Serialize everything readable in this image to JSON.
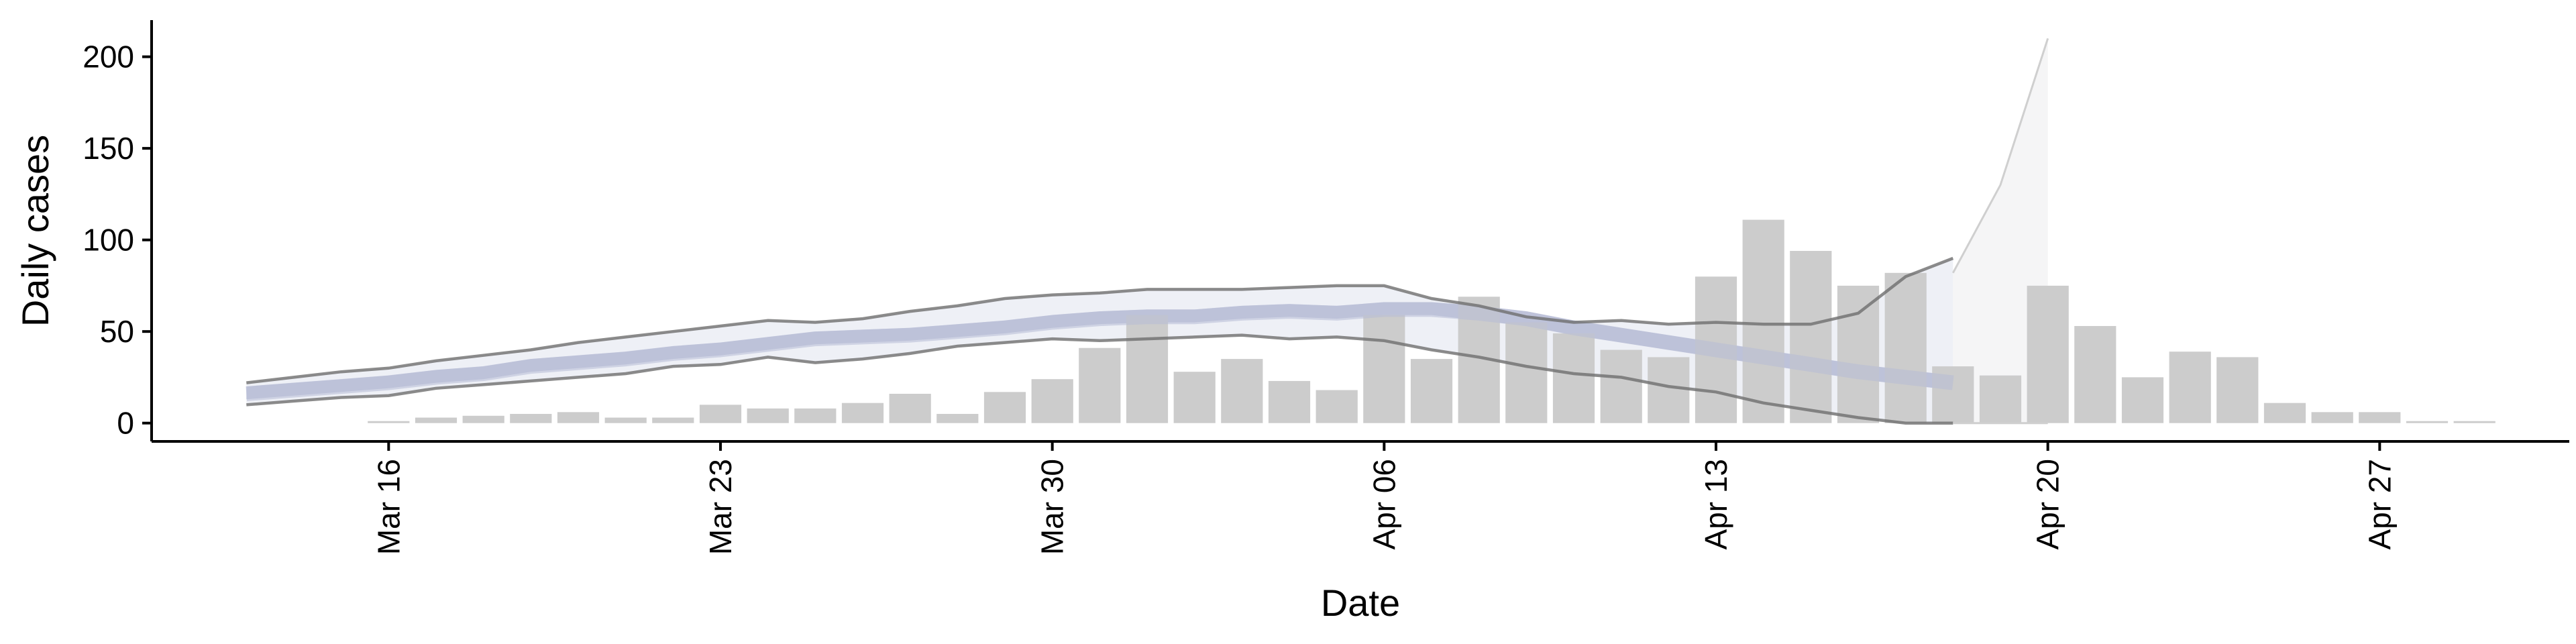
{
  "chart_data": {
    "type": "bar",
    "xlabel": "Date",
    "ylabel": "Daily cases",
    "ylim": [
      -10,
      220
    ],
    "xlim": [
      "2020-03-11",
      "2020-05-01"
    ],
    "y_ticks": [
      0,
      50,
      100,
      150,
      200
    ],
    "y_tick_labels": [
      "0",
      "50",
      "100",
      "150",
      "200"
    ],
    "x_ticks": [
      "2020-03-16",
      "2020-03-23",
      "2020-03-30",
      "2020-04-06",
      "2020-04-13",
      "2020-04-20",
      "2020-04-27"
    ],
    "x_tick_labels": [
      "Mar 16",
      "Mar 23",
      "Mar 30",
      "Apr 06",
      "Apr 13",
      "Apr 20",
      "Apr 27"
    ],
    "grid": false,
    "legend": "none",
    "colors": {
      "bars": "#cccccc",
      "band": "#b7bcd6",
      "outer_band_fill": "#eceef5",
      "bound_line": "#6e6e6e",
      "axis": "#000000"
    },
    "reported_cases": {
      "dates": [
        "2020-03-16",
        "2020-03-17",
        "2020-03-18",
        "2020-03-19",
        "2020-03-20",
        "2020-03-21",
        "2020-03-22",
        "2020-03-23",
        "2020-03-24",
        "2020-03-25",
        "2020-03-26",
        "2020-03-27",
        "2020-03-28",
        "2020-03-29",
        "2020-03-30",
        "2020-03-31",
        "2020-04-01",
        "2020-04-02",
        "2020-04-03",
        "2020-04-04",
        "2020-04-05",
        "2020-04-06",
        "2020-04-07",
        "2020-04-08",
        "2020-04-09",
        "2020-04-10",
        "2020-04-11",
        "2020-04-12",
        "2020-04-13",
        "2020-04-14",
        "2020-04-15",
        "2020-04-16",
        "2020-04-17",
        "2020-04-18",
        "2020-04-19",
        "2020-04-20",
        "2020-04-21",
        "2020-04-22",
        "2020-04-23",
        "2020-04-24",
        "2020-04-25",
        "2020-04-26",
        "2020-04-27",
        "2020-04-28",
        "2020-04-29"
      ],
      "values": [
        1,
        3,
        4,
        5,
        6,
        3,
        3,
        10,
        8,
        8,
        11,
        16,
        5,
        17,
        24,
        41,
        59,
        28,
        35,
        23,
        18,
        59,
        35,
        69,
        55,
        49,
        40,
        36,
        80,
        111,
        94,
        75,
        82,
        31,
        26,
        75,
        53,
        25,
        39,
        36,
        11,
        6,
        6,
        0,
        1
      ]
    },
    "estimate": {
      "dates": [
        "2020-03-13",
        "2020-03-14",
        "2020-03-15",
        "2020-03-16",
        "2020-03-17",
        "2020-03-18",
        "2020-03-19",
        "2020-03-20",
        "2020-03-21",
        "2020-03-22",
        "2020-03-23",
        "2020-03-24",
        "2020-03-25",
        "2020-03-26",
        "2020-03-27",
        "2020-03-28",
        "2020-03-29",
        "2020-03-30",
        "2020-03-31",
        "2020-04-01",
        "2020-04-02",
        "2020-04-03",
        "2020-04-04",
        "2020-04-05",
        "2020-04-06",
        "2020-04-07",
        "2020-04-08",
        "2020-04-09",
        "2020-04-10",
        "2020-04-11",
        "2020-04-12",
        "2020-04-13",
        "2020-04-14",
        "2020-04-15",
        "2020-04-16",
        "2020-04-17",
        "2020-04-18"
      ],
      "median": [
        16,
        18,
        20,
        22,
        25,
        27,
        31,
        33,
        35,
        38,
        40,
        43,
        46,
        47,
        48,
        50,
        52,
        55,
        57,
        58,
        58,
        60,
        61,
        60,
        62,
        62,
        60,
        57,
        52,
        48,
        44,
        40,
        36,
        32,
        28,
        25,
        22
      ],
      "inner_lower": [
        13,
        15,
        17,
        19,
        22,
        24,
        28,
        30,
        32,
        35,
        37,
        40,
        43,
        44,
        45,
        47,
        49,
        52,
        54,
        55,
        55,
        57,
        58,
        57,
        59,
        59,
        56,
        53,
        48,
        44,
        40,
        36,
        32,
        28,
        24,
        21,
        18
      ],
      "inner_upper": [
        20,
        22,
        24,
        26,
        29,
        31,
        35,
        37,
        39,
        42,
        44,
        47,
        50,
        51,
        52,
        54,
        56,
        59,
        61,
        62,
        62,
        64,
        65,
        64,
        66,
        66,
        64,
        61,
        56,
        52,
        48,
        44,
        40,
        36,
        32,
        29,
        26
      ],
      "lower": [
        10,
        12,
        14,
        15,
        19,
        21,
        23,
        25,
        27,
        31,
        32,
        36,
        33,
        35,
        38,
        42,
        44,
        46,
        45,
        46,
        47,
        48,
        46,
        47,
        45,
        40,
        36,
        31,
        27,
        25,
        20,
        17,
        11,
        7,
        3,
        0,
        0
      ],
      "upper": [
        22,
        25,
        28,
        30,
        34,
        37,
        40,
        44,
        47,
        50,
        53,
        56,
        55,
        57,
        61,
        64,
        68,
        70,
        71,
        73,
        73,
        73,
        74,
        75,
        75,
        68,
        64,
        58,
        55,
        56,
        54,
        55,
        54,
        54,
        60,
        80,
        90
      ]
    },
    "forecast": {
      "dates": [
        "2020-04-18",
        "2020-04-19",
        "2020-04-20"
      ],
      "upper": [
        82,
        130,
        210
      ],
      "lower": [
        0,
        0,
        0
      ]
    }
  }
}
